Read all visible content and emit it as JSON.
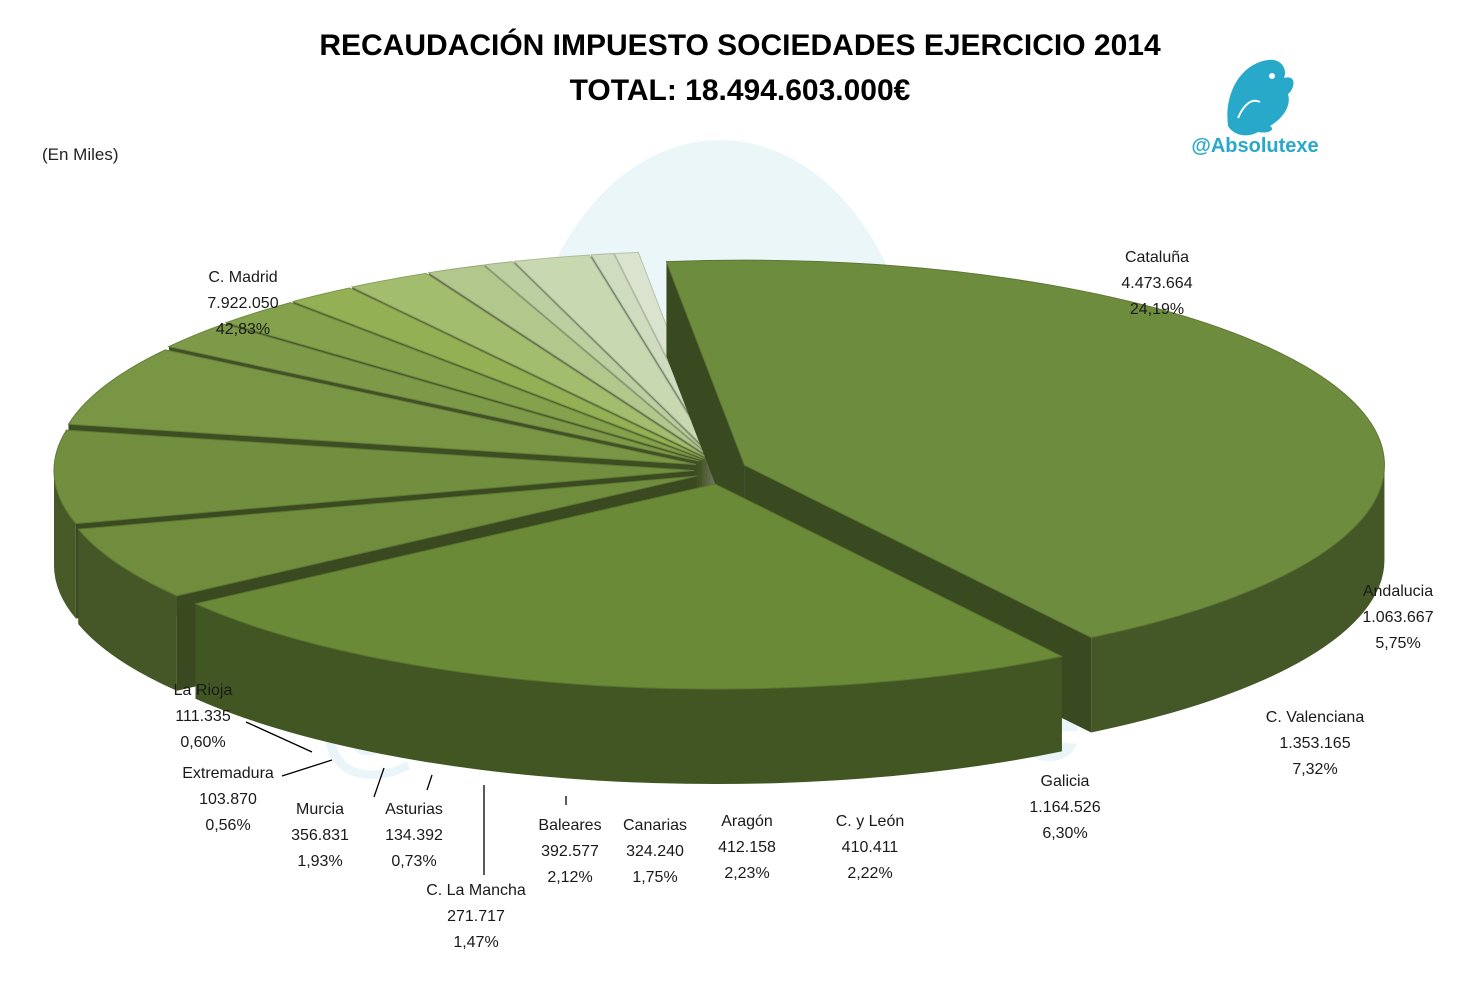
{
  "chart_data": {
    "type": "pie",
    "title": "RECAUDACIÓN IMPUESTO SOCIEDADES EJERCICIO 2014",
    "subtitle": "TOTAL: 18.494.603.000€",
    "unit_note": "(En Miles)",
    "slices": [
      {
        "label": "C. Madrid",
        "value_text": "7.922.050",
        "pct_text": "42,83%",
        "value": 7922050,
        "pct": 42.83,
        "color": "#6e8c3e"
      },
      {
        "label": "Cataluña",
        "value_text": "4.473.664",
        "pct_text": "24,19%",
        "value": 4473664,
        "pct": 24.19,
        "color": "#6a8a38"
      },
      {
        "label": "Andalucia",
        "value_text": "1.063.667",
        "pct_text": "5,75%",
        "value": 1063667,
        "pct": 5.75,
        "color": "#6f8d3d"
      },
      {
        "label": "C. Valenciana",
        "value_text": "1.353.165",
        "pct_text": "7,32%",
        "value": 1353165,
        "pct": 7.32,
        "color": "#718f3f"
      },
      {
        "label": "Galicia",
        "value_text": "1.164.526",
        "pct_text": "6,30%",
        "value": 1164526,
        "pct": 6.3,
        "color": "#789644"
      },
      {
        "label": "C. y León",
        "value_text": "410.411",
        "pct_text": "2,22%",
        "value": 410411,
        "pct": 2.22,
        "color": "#7d9a48"
      },
      {
        "label": "Aragón",
        "value_text": "412.158",
        "pct_text": "2,23%",
        "value": 412158,
        "pct": 2.23,
        "color": "#84a14c"
      },
      {
        "label": "Canarias",
        "value_text": "324.240",
        "pct_text": "1,75%",
        "value": 324240,
        "pct": 1.75,
        "color": "#93b055"
      },
      {
        "label": "Baleares",
        "value_text": "392.577",
        "pct_text": "2,12%",
        "value": 392577,
        "pct": 2.12,
        "color": "#a3bd6e"
      },
      {
        "label": "C. La Mancha",
        "value_text": "271.717",
        "pct_text": "1,47%",
        "value": 271717,
        "pct": 1.47,
        "color": "#b2c78c"
      },
      {
        "label": "Asturias",
        "value_text": "134.392",
        "pct_text": "0,73%",
        "value": 134392,
        "pct": 0.73,
        "color": "#bccfa0"
      },
      {
        "label": "Murcia",
        "value_text": "356.831",
        "pct_text": "1,93%",
        "value": 356831,
        "pct": 1.93,
        "color": "#c8d8b0"
      },
      {
        "label": "Extremadura",
        "value_text": "103.870",
        "pct_text": "0,56%",
        "value": 103870,
        "pct": 0.56,
        "color": "#d0dcbf"
      },
      {
        "label": "La Rioja",
        "value_text": "111.335",
        "pct_text": "0,60%",
        "value": 111335,
        "pct": 0.6,
        "color": "#d9e3cd"
      }
    ]
  },
  "watermark": {
    "handle": "@Absolutexe",
    "icon": "griffin-logo-icon",
    "color": "#29a9c9"
  }
}
